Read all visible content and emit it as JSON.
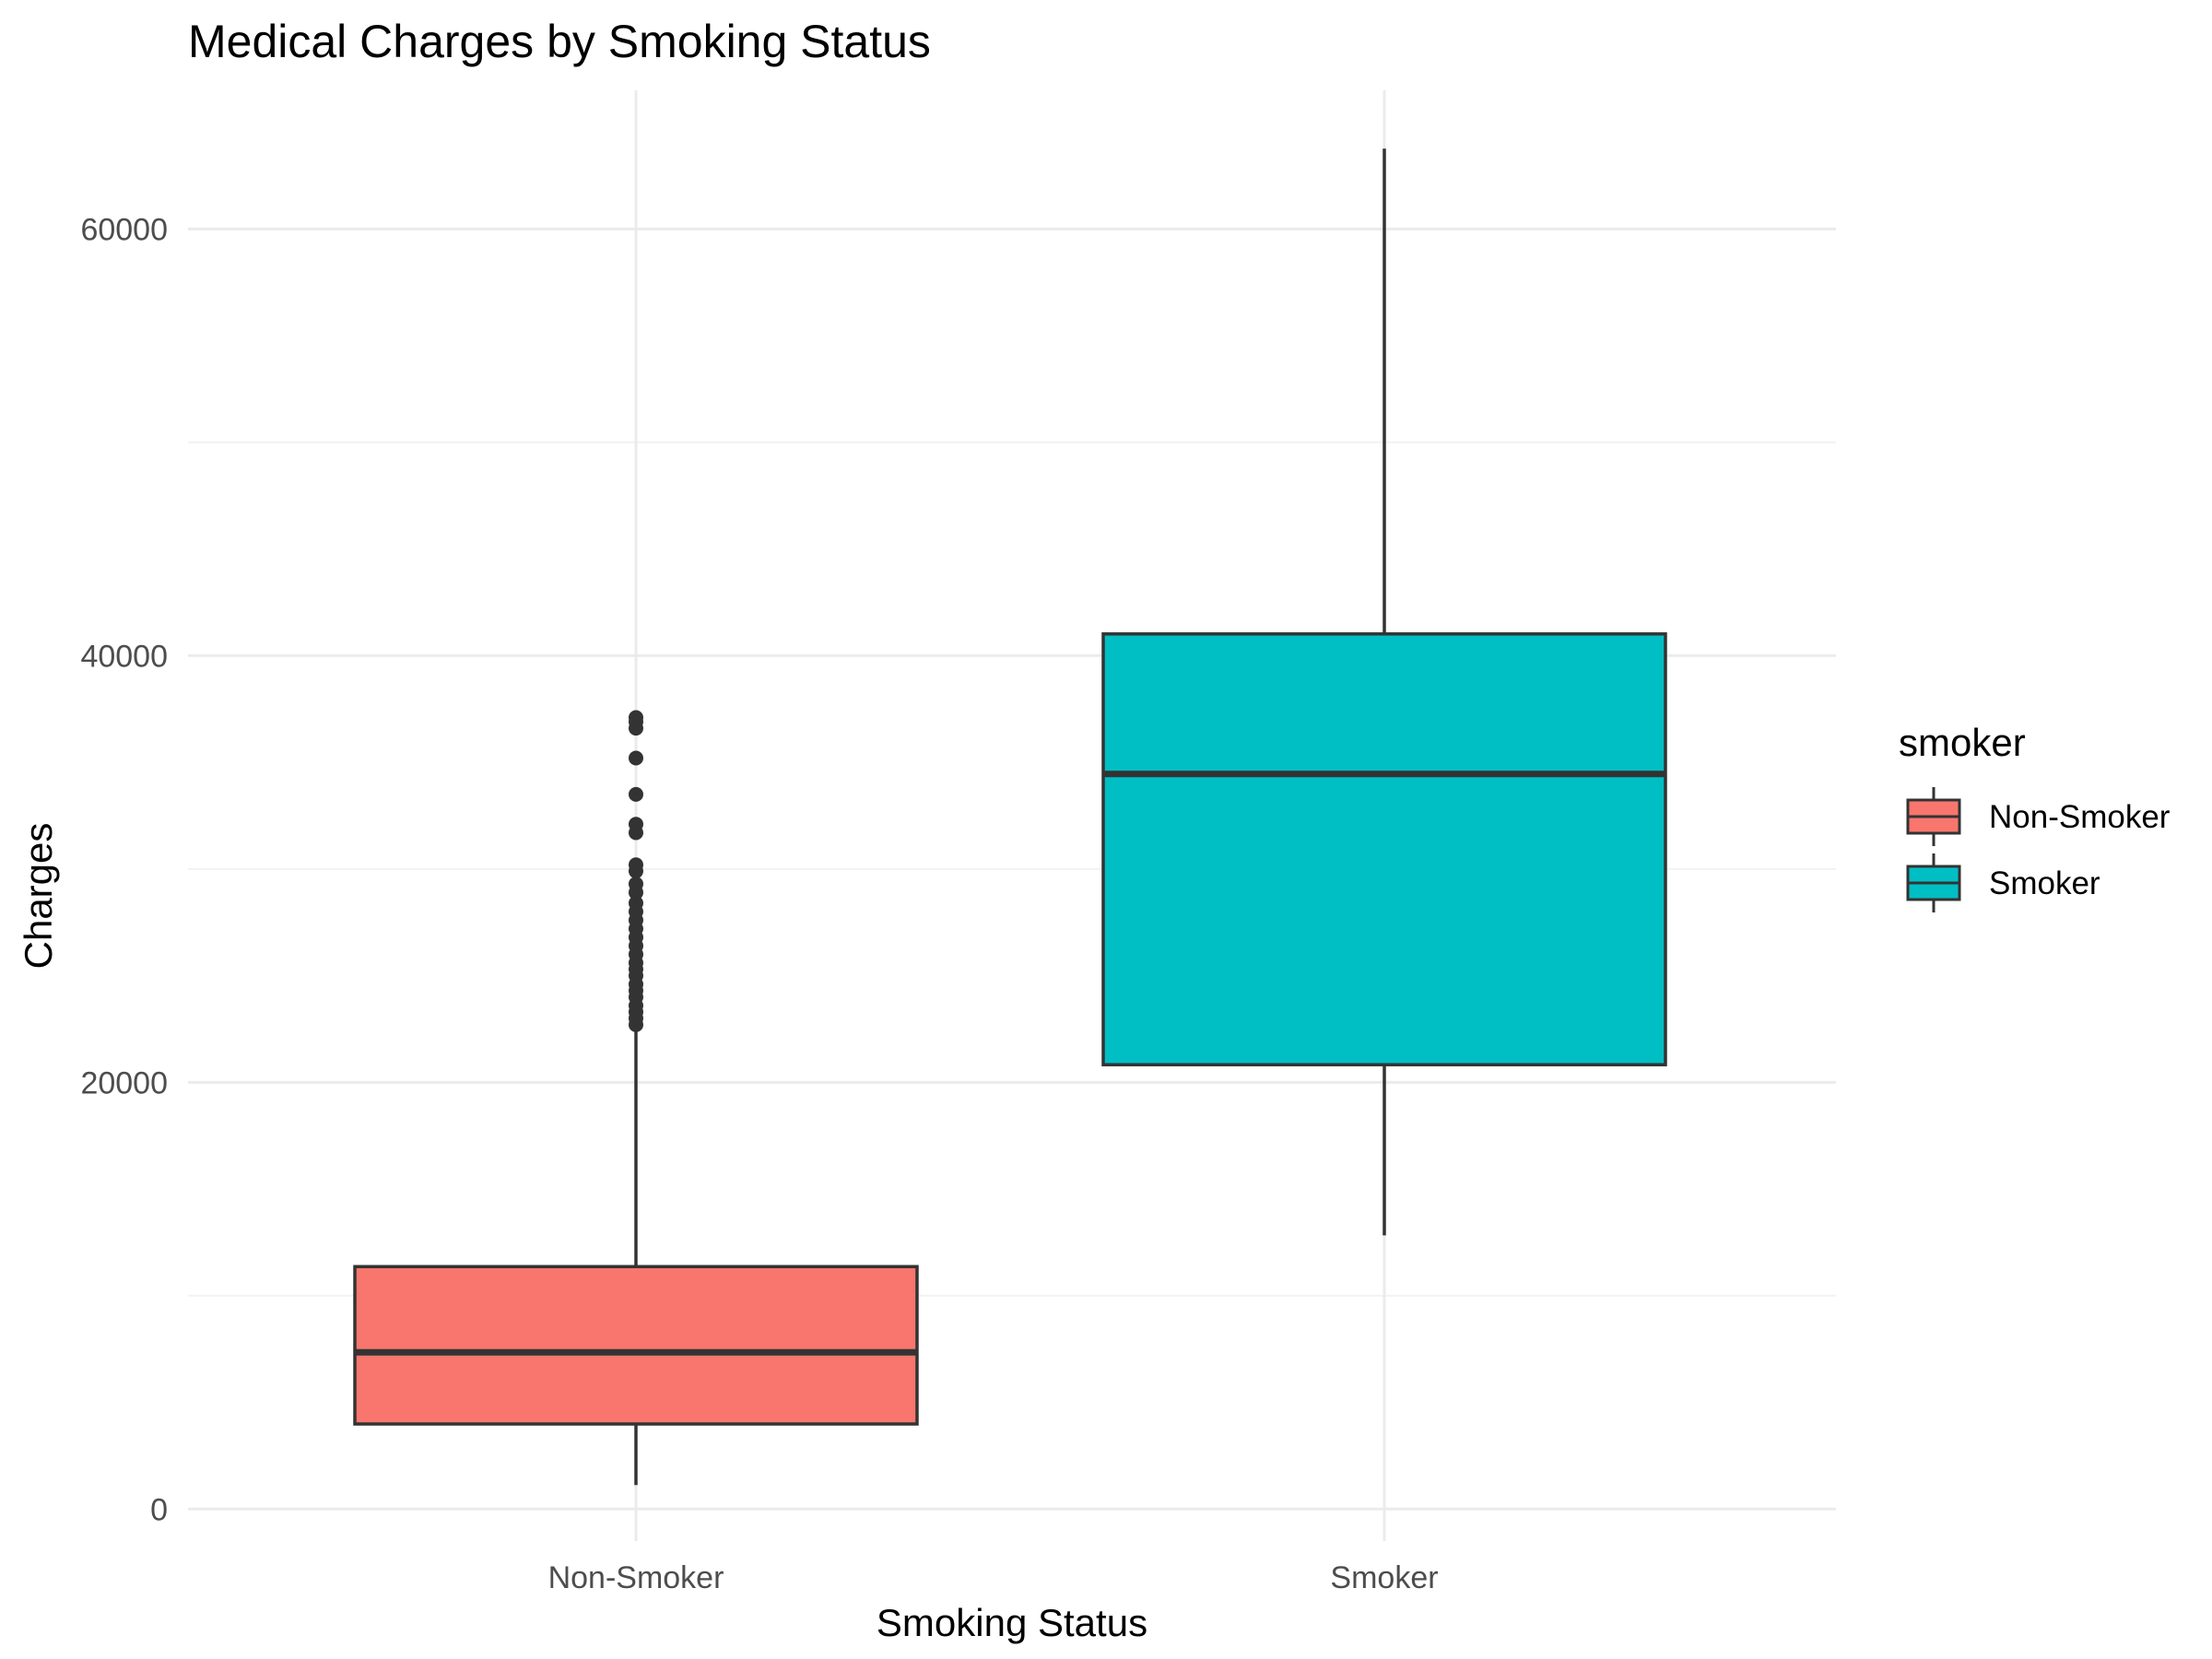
{
  "chart_data": {
    "type": "boxplot",
    "title": "Medical Charges by Smoking Status",
    "xlabel": "Smoking Status",
    "ylabel": "Charges",
    "categories": [
      "Non-Smoker",
      "Smoker"
    ],
    "ylim": [
      -1500,
      66500
    ],
    "yticks": [
      0,
      20000,
      40000,
      60000
    ],
    "y_minor_ticks": [
      10000,
      30000,
      50000
    ],
    "grid": true,
    "legend": {
      "title": "smoker",
      "position": "right",
      "entries": [
        "Non-Smoker",
        "Smoker"
      ]
    },
    "boxes": [
      {
        "category": "Non-Smoker",
        "color": "#F8766D",
        "whisker_low": 1122,
        "q1": 3986,
        "median": 7345,
        "q3": 11363,
        "whisker_high": 22400,
        "outliers": [
          22700,
          23000,
          23300,
          23600,
          24000,
          24300,
          24600,
          25000,
          25300,
          25600,
          26000,
          26400,
          26800,
          27200,
          27600,
          28000,
          28400,
          28900,
          29300,
          29900,
          30200,
          31700,
          32100,
          33500,
          35200,
          36600,
          36900,
          37100
        ]
      },
      {
        "category": "Smoker",
        "color": "#00BFC4",
        "whisker_low": 12829,
        "q1": 20826,
        "median": 34456,
        "q3": 41019,
        "whisker_high": 63770,
        "outliers": []
      }
    ]
  }
}
